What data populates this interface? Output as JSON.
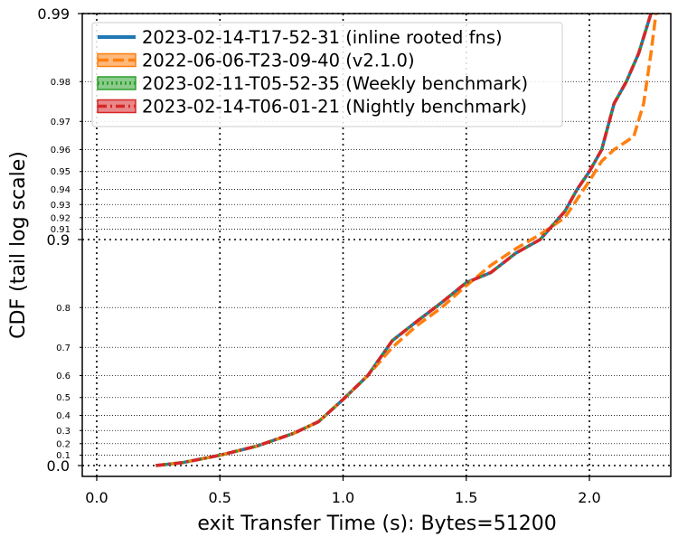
{
  "chart_data": {
    "type": "line",
    "xlabel": "exit Transfer Time (s): Bytes=51200",
    "ylabel": "CDF (tail log scale)",
    "x_scale": "linear",
    "y_scale": "tail log (1/(1-p))",
    "xlim": [
      -0.07,
      2.33
    ],
    "ylim": [
      0,
      0.99
    ],
    "grid": "on (dotted)",
    "legend_position": "top-left",
    "x_ticks": [
      {
        "value": 0.0,
        "label": "0.0"
      },
      {
        "value": 0.5,
        "label": "0.5"
      },
      {
        "value": 1.0,
        "label": "1.0"
      },
      {
        "value": 1.5,
        "label": "1.5"
      },
      {
        "value": 2.0,
        "label": "2.0"
      }
    ],
    "y_ticks_major": [
      {
        "value": 0.0,
        "label": "0.0"
      },
      {
        "value": 0.9,
        "label": "0.9"
      },
      {
        "value": 0.99,
        "label": "0.99"
      }
    ],
    "y_ticks_minor": [
      {
        "value": 0.1,
        "label": "0.1"
      },
      {
        "value": 0.2,
        "label": "0.2"
      },
      {
        "value": 0.3,
        "label": "0.3"
      },
      {
        "value": 0.4,
        "label": "0.4"
      },
      {
        "value": 0.5,
        "label": "0.5"
      },
      {
        "value": 0.6,
        "label": "0.6"
      },
      {
        "value": 0.7,
        "label": "0.7"
      },
      {
        "value": 0.8,
        "label": "0.8"
      },
      {
        "value": 0.91,
        "label": "0.91"
      },
      {
        "value": 0.92,
        "label": "0.92"
      },
      {
        "value": 0.93,
        "label": "0.93"
      },
      {
        "value": 0.94,
        "label": "0.94"
      },
      {
        "value": 0.95,
        "label": "0.95"
      },
      {
        "value": 0.96,
        "label": "0.96"
      },
      {
        "value": 0.97,
        "label": "0.97"
      },
      {
        "value": 0.98,
        "label": "0.98"
      }
    ],
    "series": [
      {
        "name": "2023-02-14-T17-52-31 (inline rooted fns)",
        "color": "#1f77b4",
        "style": "solid",
        "points": [
          [
            0.24,
            0.0
          ],
          [
            0.35,
            0.03
          ],
          [
            0.5,
            0.1
          ],
          [
            0.65,
            0.18
          ],
          [
            0.8,
            0.28
          ],
          [
            0.9,
            0.36
          ],
          [
            1.0,
            0.49
          ],
          [
            1.1,
            0.6
          ],
          [
            1.2,
            0.72
          ],
          [
            1.3,
            0.77
          ],
          [
            1.4,
            0.81
          ],
          [
            1.5,
            0.845
          ],
          [
            1.6,
            0.86
          ],
          [
            1.7,
            0.885
          ],
          [
            1.8,
            0.9
          ],
          [
            1.9,
            0.925
          ],
          [
            1.95,
            0.94
          ],
          [
            2.0,
            0.95
          ],
          [
            2.05,
            0.96
          ],
          [
            2.1,
            0.975
          ],
          [
            2.15,
            0.98
          ],
          [
            2.2,
            0.985
          ],
          [
            2.25,
            0.99
          ]
        ]
      },
      {
        "name": "2022-06-06-T23-09-40 (v2.1.0)",
        "color": "#ff7f0e",
        "style": "dashed",
        "points": [
          [
            0.24,
            0.0
          ],
          [
            0.35,
            0.03
          ],
          [
            0.5,
            0.1
          ],
          [
            0.65,
            0.18
          ],
          [
            0.8,
            0.28
          ],
          [
            0.9,
            0.36
          ],
          [
            1.0,
            0.49
          ],
          [
            1.1,
            0.6
          ],
          [
            1.2,
            0.7
          ],
          [
            1.3,
            0.76
          ],
          [
            1.4,
            0.8
          ],
          [
            1.5,
            0.84
          ],
          [
            1.6,
            0.87
          ],
          [
            1.7,
            0.89
          ],
          [
            1.8,
            0.905
          ],
          [
            1.9,
            0.92
          ],
          [
            2.0,
            0.945
          ],
          [
            2.05,
            0.955
          ],
          [
            2.1,
            0.96
          ],
          [
            2.18,
            0.965
          ],
          [
            2.22,
            0.975
          ],
          [
            2.25,
            0.985
          ],
          [
            2.27,
            0.99
          ]
        ]
      },
      {
        "name": "2023-02-11-T05-52-35 (Weekly benchmark)",
        "color": "#2ca02c",
        "style": "dotted",
        "points": [
          [
            0.24,
            0.0
          ],
          [
            0.35,
            0.03
          ],
          [
            0.5,
            0.1
          ],
          [
            0.65,
            0.18
          ],
          [
            0.8,
            0.28
          ],
          [
            0.9,
            0.36
          ],
          [
            1.0,
            0.49
          ],
          [
            1.1,
            0.6
          ],
          [
            1.2,
            0.72
          ],
          [
            1.3,
            0.77
          ],
          [
            1.4,
            0.81
          ],
          [
            1.5,
            0.845
          ],
          [
            1.6,
            0.86
          ],
          [
            1.7,
            0.885
          ],
          [
            1.8,
            0.9
          ],
          [
            1.9,
            0.925
          ],
          [
            1.95,
            0.94
          ],
          [
            2.0,
            0.95
          ],
          [
            2.05,
            0.96
          ],
          [
            2.1,
            0.975
          ],
          [
            2.15,
            0.98
          ],
          [
            2.2,
            0.985
          ],
          [
            2.25,
            0.99
          ]
        ]
      },
      {
        "name": "2023-02-14-T06-01-21 (Nightly benchmark)",
        "color": "#d62728",
        "style": "dashdot",
        "points": [
          [
            0.24,
            0.0
          ],
          [
            0.35,
            0.03
          ],
          [
            0.5,
            0.1
          ],
          [
            0.65,
            0.18
          ],
          [
            0.8,
            0.28
          ],
          [
            0.9,
            0.36
          ],
          [
            1.0,
            0.49
          ],
          [
            1.1,
            0.6
          ],
          [
            1.2,
            0.72
          ],
          [
            1.3,
            0.77
          ],
          [
            1.4,
            0.81
          ],
          [
            1.5,
            0.845
          ],
          [
            1.6,
            0.86
          ],
          [
            1.7,
            0.885
          ],
          [
            1.8,
            0.9
          ],
          [
            1.9,
            0.925
          ],
          [
            1.95,
            0.94
          ],
          [
            2.0,
            0.95
          ],
          [
            2.05,
            0.96
          ],
          [
            2.1,
            0.975
          ],
          [
            2.15,
            0.98
          ],
          [
            2.2,
            0.985
          ],
          [
            2.25,
            0.99
          ]
        ]
      }
    ]
  }
}
